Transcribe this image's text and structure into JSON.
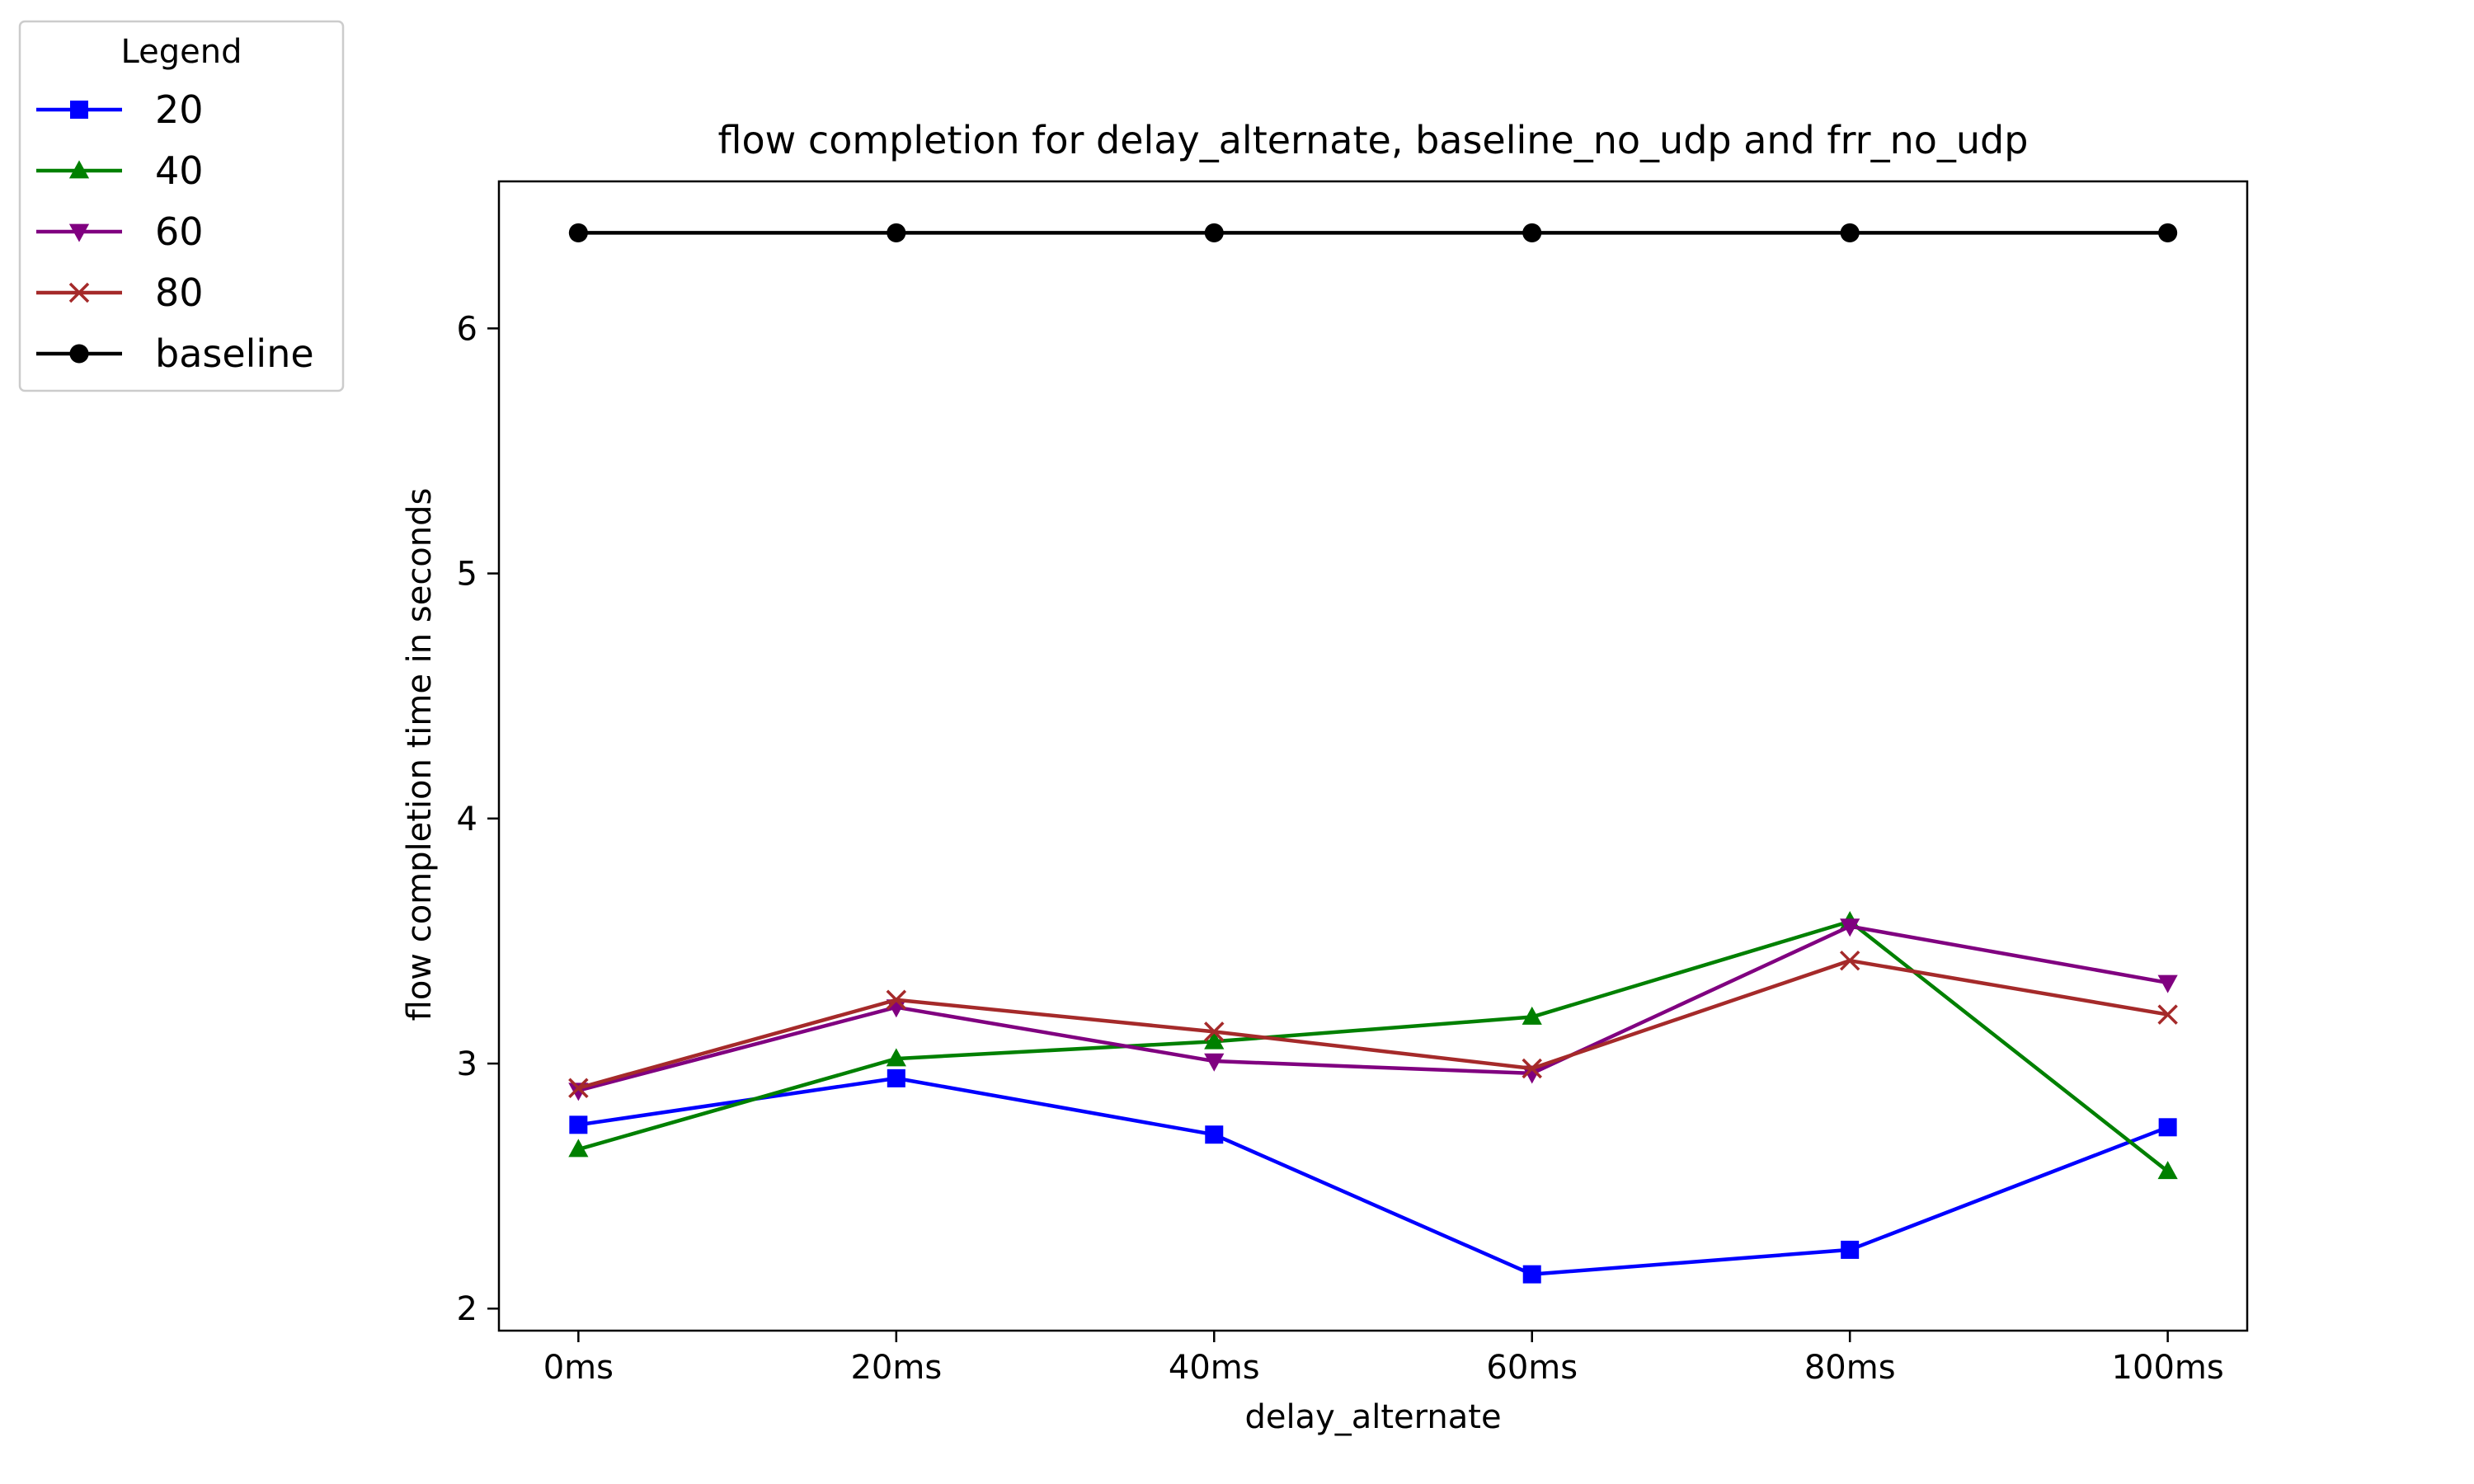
{
  "chart_data": {
    "type": "line",
    "title": "flow completion for delay_alternate, baseline_no_udp and frr_no_udp",
    "xlabel": "delay_alternate",
    "ylabel": "flow completion time in seconds",
    "categories": [
      "0ms",
      "20ms",
      "40ms",
      "60ms",
      "80ms",
      "100ms"
    ],
    "ylim": [
      1.91,
      6.6
    ],
    "yticks": [
      2,
      3,
      4,
      5,
      6
    ],
    "grid": false,
    "legend": {
      "title": "Legend",
      "placement": "upper-left-outside"
    },
    "series": [
      {
        "name": "20",
        "color": "#0000ff",
        "marker": "square",
        "values": [
          2.75,
          2.94,
          2.71,
          2.14,
          2.24,
          2.74
        ]
      },
      {
        "name": "40",
        "color": "#008000",
        "marker": "triangle-up",
        "values": [
          2.65,
          3.02,
          3.09,
          3.19,
          3.58,
          2.56
        ]
      },
      {
        "name": "60",
        "color": "#800080",
        "marker": "triangle-down",
        "values": [
          2.89,
          3.23,
          3.01,
          2.96,
          3.56,
          3.33
        ]
      },
      {
        "name": "80",
        "color": "#a52a2a",
        "marker": "x",
        "values": [
          2.9,
          3.26,
          3.13,
          2.98,
          3.42,
          3.2
        ]
      },
      {
        "name": "baseline",
        "color": "#000000",
        "marker": "circle",
        "values": [
          6.39,
          6.39,
          6.39,
          6.39,
          6.39,
          6.39
        ]
      }
    ]
  }
}
